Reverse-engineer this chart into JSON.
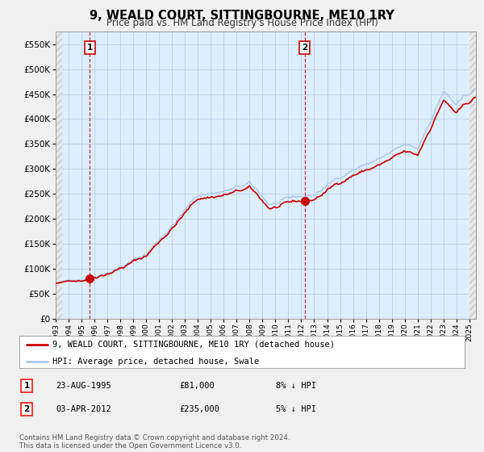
{
  "title": "9, WEALD COURT, SITTINGBOURNE, ME10 1RY",
  "subtitle": "Price paid vs. HM Land Registry's House Price Index (HPI)",
  "ytick_values": [
    0,
    50000,
    100000,
    150000,
    200000,
    250000,
    300000,
    350000,
    400000,
    450000,
    500000,
    550000
  ],
  "ylim": [
    0,
    575000
  ],
  "hpi_color": "#a8c8e8",
  "price_color": "#cc0000",
  "plot_bg_color": "#ddeeff",
  "marker1_date_x": 1995.647,
  "marker1_price": 81000,
  "marker2_date_x": 2012.253,
  "marker2_price": 235000,
  "legend_property_label": "9, WEALD COURT, SITTINGBOURNE, ME10 1RY (detached house)",
  "legend_hpi_label": "HPI: Average price, detached house, Swale",
  "table_row1": [
    "1",
    "23-AUG-1995",
    "£81,000",
    "8% ↓ HPI"
  ],
  "table_row2": [
    "2",
    "03-APR-2012",
    "£235,000",
    "5% ↓ HPI"
  ],
  "footnote": "Contains HM Land Registry data © Crown copyright and database right 2024.\nThis data is licensed under the Open Government Licence v3.0.",
  "bg_color": "#f0f0f0",
  "xlim_start": 1993.0,
  "xlim_end": 2025.5
}
